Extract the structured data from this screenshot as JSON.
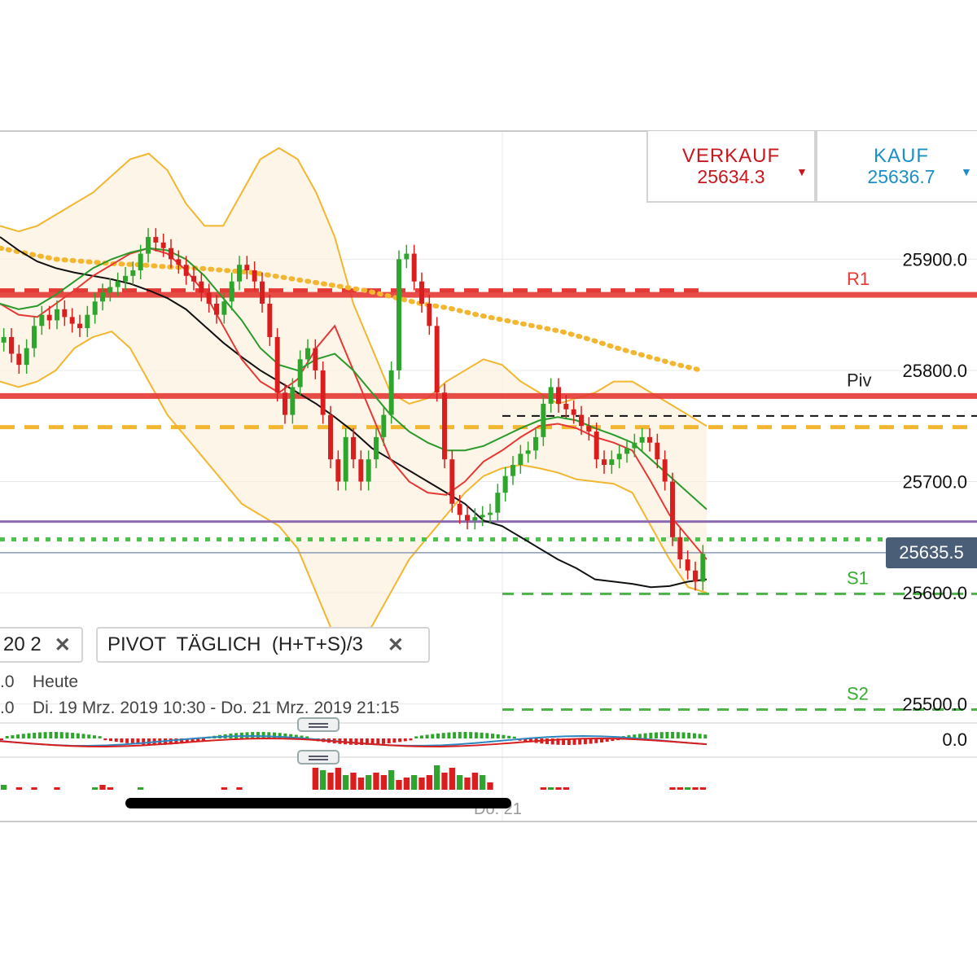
{
  "quote": {
    "sell_label": "VERKAUF",
    "sell_value": "25634.3",
    "buy_label": "KAUF",
    "buy_value": "25636.7",
    "sell_color": "#c8171e",
    "buy_color": "#1c8fc6",
    "arrow": "▼"
  },
  "chips": {
    "left_text": "20  2",
    "pivot_text": "PIVOT  TÄGLICH  (H+T+S)/3",
    "close_icon": "✕"
  },
  "info": {
    "line1_prefix": ".0",
    "line1_text": "Heute",
    "line2_prefix": ".0",
    "line2_text": "Di. 19 Mrz. 2019 10:30 - Do. 21 Mrz. 2019 21:15"
  },
  "current_price": "25635.5",
  "macd_zero_label": "0.0",
  "x_axis_label": "Do. 21",
  "chart_data": {
    "type": "candlestick",
    "ylim": [
      25540,
      26005
    ],
    "y_ticks": [
      {
        "value": 25900,
        "label": "25900.0"
      },
      {
        "value": 25800,
        "label": "25800.0"
      },
      {
        "value": 25700,
        "label": "25700.0"
      },
      {
        "value": 25600,
        "label": "25600.0"
      },
      {
        "value": 25500,
        "label": "25500.0"
      }
    ],
    "levels": [
      {
        "name": "R1",
        "value": 25868,
        "style": "solid",
        "color": "#e53935"
      },
      {
        "name": "Piv",
        "value": 25777,
        "style": "solid",
        "color": "#e53935"
      },
      {
        "name": "S1",
        "value": 25599,
        "style": "dashed",
        "color": "#3aaa35"
      },
      {
        "name": "S2",
        "value": 25495,
        "style": "dashed",
        "color": "#3aaa35"
      }
    ],
    "extra_levels": [
      {
        "value": 25872,
        "style": "dashed",
        "color": "#e53935"
      },
      {
        "value": 25759,
        "style": "dashed",
        "color": "#111111"
      },
      {
        "value": 25749,
        "style": "dashed",
        "color": "#f2b630"
      },
      {
        "value": 25664,
        "style": "solid",
        "color": "#8e6bb0"
      },
      {
        "value": 25648,
        "style": "dotted",
        "color": "#4cc24c"
      },
      {
        "value": 25636,
        "style": "solid",
        "color": "#8a9bb5"
      }
    ],
    "closes": [
      25830,
      25815,
      25805,
      25820,
      25840,
      25850,
      25845,
      25855,
      25848,
      25842,
      25838,
      25850,
      25862,
      25870,
      25875,
      25880,
      25885,
      25890,
      25905,
      25920,
      25915,
      25910,
      25900,
      25895,
      25885,
      25880,
      25870,
      25860,
      25850,
      25862,
      25880,
      25895,
      25890,
      25880,
      25860,
      25830,
      25780,
      25760,
      25785,
      25810,
      25820,
      25800,
      25760,
      25720,
      25700,
      25740,
      25720,
      25700,
      25720,
      25740,
      25760,
      25800,
      25900,
      25905,
      25880,
      25860,
      25840,
      25780,
      25720,
      25680,
      25670,
      25665,
      25668,
      25670,
      25672,
      25690,
      25705,
      25715,
      25725,
      25728,
      25740,
      25770,
      25785,
      25770,
      25765,
      25760,
      25750,
      25745,
      25720,
      25715,
      25720,
      25725,
      25730,
      25735,
      25740,
      25735,
      25720,
      25700,
      25650,
      25630,
      25620,
      25610,
      25635
    ],
    "series": [
      {
        "name": "",
        "color": "#111111",
        "values": [
          25920,
          25908,
          25898,
          25892,
          25888,
          25885,
          25882,
          25878,
          25872,
          25865,
          25855,
          25840,
          25825,
          25812,
          25800,
          25790,
          25780,
          25770,
          25758,
          25745,
          25730,
          25720,
          25710,
          25700,
          25690,
          25680,
          25665,
          25660,
          25650,
          25640,
          25630,
          25622,
          25612,
          25610,
          25608,
          25605,
          25606,
          25610,
          25612
        ]
      },
      {
        "name": "",
        "color": "#e53935",
        "values": [
          25860,
          25850,
          25848,
          25860,
          25872,
          25885,
          25895,
          25905,
          25910,
          25905,
          25890,
          25870,
          25840,
          25810,
          25790,
          25780,
          25792,
          25820,
          25840,
          25800,
          25760,
          25720,
          25700,
          25690,
          25688,
          25700,
          25718,
          25728,
          25740,
          25750,
          25752,
          25748,
          25740,
          25735,
          25728,
          25700,
          25670,
          25650,
          25630
        ]
      },
      {
        "name": "",
        "color": "#2a9a2a",
        "values": [
          25860,
          25855,
          25858,
          25868,
          25880,
          25892,
          25900,
          25906,
          25910,
          25908,
          25900,
          25885,
          25865,
          25845,
          25820,
          25805,
          25800,
          25810,
          25815,
          25800,
          25780,
          25760,
          25745,
          25735,
          25728,
          25728,
          25732,
          25740,
          25748,
          25755,
          25758,
          25755,
          25748,
          25742,
          25735,
          25720,
          25705,
          25690,
          25675
        ]
      }
    ],
    "bands": {
      "upper": [
        25930,
        25925,
        25930,
        25940,
        25950,
        25960,
        25975,
        25990,
        25995,
        25980,
        25950,
        25930,
        25930,
        25960,
        25990,
        26000,
        25990,
        25960,
        25920,
        25860,
        25820,
        25780,
        25770,
        25775,
        25790,
        25800,
        25810,
        25805,
        25790,
        25780,
        25770,
        25775,
        25780,
        25790,
        25790,
        25780,
        25770,
        25760,
        25750
      ],
      "lower": [
        25790,
        25785,
        25790,
        25800,
        25820,
        25830,
        25835,
        25820,
        25790,
        25760,
        25740,
        25720,
        25700,
        25680,
        25670,
        25660,
        25640,
        25600,
        25560,
        25550,
        25570,
        25600,
        25630,
        25650,
        25670,
        25690,
        25705,
        25712,
        25715,
        25712,
        25708,
        25702,
        25700,
        25698,
        25690,
        25660,
        25630,
        25605,
        25600
      ],
      "color": "#f2b630"
    },
    "ma200": {
      "name": "",
      "color": "#f2b630",
      "values": [
        25910,
        25905,
        25900,
        25898,
        25896,
        25895,
        25893,
        25892,
        25890,
        25888,
        25884,
        25880,
        25876,
        25872,
        25866,
        25860,
        25856,
        25850,
        25845,
        25840,
        25835,
        25828,
        25820,
        25813,
        25806,
        25800
      ]
    },
    "macd": {
      "zero": 0
    },
    "volume": {
      "bars": [
        2,
        0,
        1,
        0,
        1,
        0,
        0,
        1,
        0,
        0,
        0,
        0,
        1,
        2,
        1,
        0,
        0,
        0,
        1,
        0,
        0,
        0,
        0,
        0,
        0,
        0,
        0,
        0,
        0,
        1,
        0,
        1,
        0,
        0,
        0,
        0,
        0,
        0,
        0,
        0,
        0,
        9,
        8,
        7,
        9,
        6,
        7,
        5,
        6,
        7,
        6,
        8,
        4,
        5,
        6,
        5,
        6,
        10,
        7,
        9,
        6,
        5,
        7,
        6,
        3,
        0,
        0,
        0,
        0,
        0,
        0,
        1,
        1,
        1,
        1,
        0,
        0,
        0,
        0,
        0,
        0,
        0,
        0,
        0,
        0,
        0,
        0,
        0,
        1,
        1,
        1,
        1,
        1
      ]
    }
  }
}
